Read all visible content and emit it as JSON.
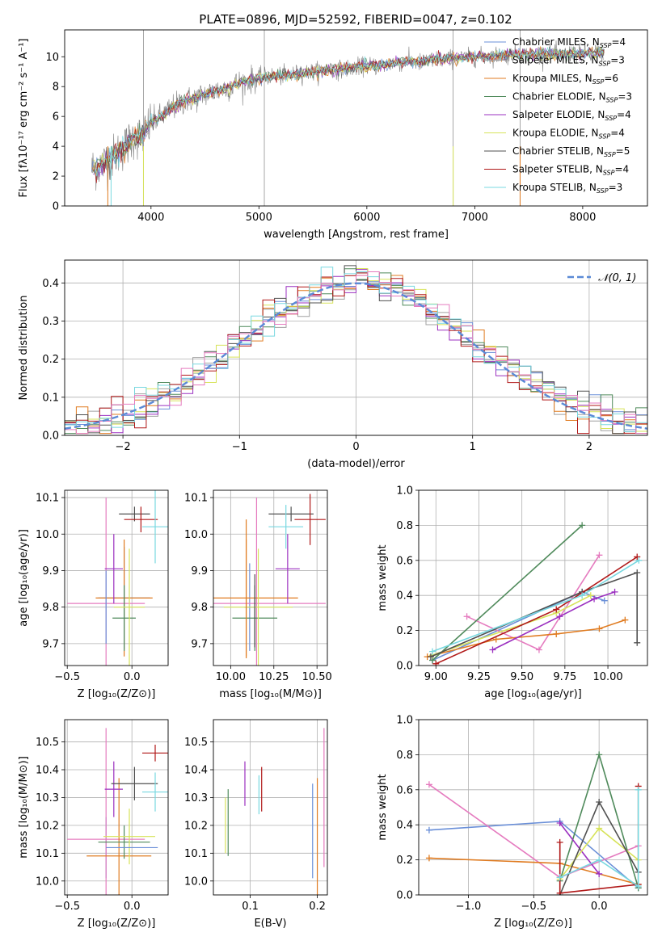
{
  "figure": {
    "title": "PLATE=0896, MJD=52592, FIBERID=0047, z=0.102"
  },
  "palette": {
    "Chabrier MILES": "#6a8fd8",
    "Salpeter MILES": "#a0a0a0",
    "Kroupa MILES": "#e07b20",
    "Chabrier ELODIE": "#4f8a5b",
    "Salpeter ELODIE": "#9b30c0",
    "Kroupa ELODIE": "#d7e35a",
    "Chabrier STELIB": "#505050",
    "Salpeter STELIB": "#b01818",
    "Kroupa STELIB": "#78d8e0",
    "Pink": "#e57bbf",
    "Data": "#7f7f7f",
    "Normal": "#5b8ad6"
  },
  "chart_data": [
    {
      "id": "spectrum",
      "type": "line",
      "xlabel": "wavelength [Angstrom, rest frame]",
      "ylabel": "Flux [fλ10⁻¹⁷ erg cm⁻² s⁻¹ A⁻¹]",
      "xlim": [
        3200,
        8600
      ],
      "ylim": [
        0,
        11.8
      ],
      "xticks": [
        4000,
        5000,
        6000,
        7000,
        8000
      ],
      "yticks": [
        0,
        2,
        4,
        6,
        8,
        10
      ],
      "grid": false,
      "legend_position": "upper-right",
      "legend": [
        {
          "name": "Chabrier MILES",
          "label": "Chabrier MILES, N",
          "sub": "SSP",
          "tail": "=4"
        },
        {
          "name": "Salpeter MILES",
          "label": "Salpeter MILES, N",
          "sub": "SSP",
          "tail": "=3"
        },
        {
          "name": "Kroupa MILES",
          "label": "Kroupa MILES, N",
          "sub": "SSP",
          "tail": "=6"
        },
        {
          "name": "Chabrier ELODIE",
          "label": "Chabrier ELODIE, N",
          "sub": "SSP",
          "tail": "=3"
        },
        {
          "name": "Salpeter ELODIE",
          "label": "Salpeter ELODIE, N",
          "sub": "SSP",
          "tail": "=4"
        },
        {
          "name": "Kroupa ELODIE",
          "label": "Kroupa ELODIE, N",
          "sub": "SSP",
          "tail": "=4"
        },
        {
          "name": "Chabrier STELIB",
          "label": "Chabrier STELIB, N",
          "sub": "SSP",
          "tail": "=5"
        },
        {
          "name": "Salpeter STELIB",
          "label": "Salpeter STELIB, N",
          "sub": "SSP",
          "tail": "=4"
        },
        {
          "name": "Kroupa STELIB",
          "label": "Kroupa STELIB, N",
          "sub": "SSP",
          "tail": "=3"
        }
      ],
      "data_x": [
        3450,
        3500,
        3550,
        3600,
        3650,
        3700,
        3750,
        3800,
        3850,
        3900,
        3950,
        4000,
        4100,
        4200,
        4300,
        4400,
        4500,
        4600,
        4700,
        4800,
        4900,
        5000,
        5100,
        5200,
        5300,
        5400,
        5500,
        5600,
        5700,
        5800,
        5900,
        6000,
        6100,
        6200,
        6300,
        6400,
        6500,
        6600,
        6700,
        6800,
        6900,
        7000,
        7100,
        7200,
        7300,
        7400,
        7500,
        7600,
        7700,
        7800,
        7900,
        8000,
        8100,
        8200
      ],
      "data_y": [
        2.5,
        2.6,
        2.8,
        3.0,
        3.3,
        3.6,
        3.9,
        4.3,
        4.7,
        4.6,
        5.0,
        5.6,
        6.0,
        6.6,
        7.0,
        7.2,
        7.5,
        7.7,
        7.9,
        8.2,
        8.4,
        8.6,
        8.7,
        8.7,
        8.8,
        8.9,
        9.0,
        9.1,
        9.1,
        9.2,
        9.3,
        9.4,
        9.4,
        9.5,
        9.6,
        9.7,
        9.6,
        9.8,
        9.8,
        9.9,
        9.9,
        10.0,
        10.0,
        10.1,
        10.1,
        10.2,
        10.1,
        10.2,
        10.2,
        10.1,
        10.2,
        10.2,
        10.3,
        10.2
      ],
      "spikes_x": [
        5050,
        6800,
        7420,
        3930
      ]
    },
    {
      "id": "residuals",
      "type": "area",
      "xlabel": "(data-model)/error",
      "ylabel": "Normed distribution",
      "xlim": [
        -2.5,
        2.5
      ],
      "ylim": [
        0,
        0.46
      ],
      "xticks": [
        -2,
        -1,
        0,
        1,
        2
      ],
      "yticks": [
        0.0,
        0.1,
        0.2,
        0.3,
        0.4
      ],
      "grid": true,
      "legend_position": "upper-right",
      "legend_label": "𝒩(0, 1)",
      "bin_width": 0.1,
      "description": "step histograms for each of 9 fits plus normal pdf"
    },
    {
      "id": "age-vs-Z",
      "type": "scatter",
      "xlabel": "Z [log₁₀(Z/Z⊙)]",
      "ylabel": "age  [log₁₀(age/yr)]",
      "xlim": [
        -0.52,
        0.28
      ],
      "ylim": [
        9.64,
        10.12
      ],
      "xticks": [
        -0.5,
        0.0
      ],
      "yticks": [
        9.7,
        9.8,
        9.9,
        10.0,
        10.1
      ],
      "grid": true,
      "points": [
        {
          "c": "Chabrier MILES",
          "x": -0.06,
          "y": 9.825,
          "xe": 0.2,
          "ye": 0.14
        },
        {
          "c": "Pink",
          "x": -0.2,
          "y": 9.81,
          "xe": 0.3,
          "ye": 0.29
        },
        {
          "c": "Kroupa MILES",
          "x": -0.06,
          "y": 9.825,
          "xe": 0.22,
          "ye": 0.16
        },
        {
          "c": "Chabrier ELODIE",
          "x": -0.06,
          "y": 9.77,
          "xe": 0.09,
          "ye": 0.09
        },
        {
          "c": "Salpeter ELODIE",
          "x": -0.14,
          "y": 9.905,
          "xe": 0.07,
          "ye": 0.095
        },
        {
          "c": "Kroupa ELODIE",
          "x": -0.02,
          "y": 9.8,
          "xe": 0.12,
          "ye": 0.16
        },
        {
          "c": "Chabrier STELIB",
          "x": 0.02,
          "y": 10.055,
          "xe": 0.12,
          "ye": 0.02
        },
        {
          "c": "Salpeter STELIB",
          "x": 0.07,
          "y": 10.04,
          "xe": 0.13,
          "ye": 0.035
        },
        {
          "c": "Kroupa STELIB",
          "x": 0.18,
          "y": 10.02,
          "xe": 0.1,
          "ye": 0.1
        },
        {
          "c": "Chabrier MILES",
          "x": -0.2,
          "y": 9.8,
          "xe": 0.0,
          "ye": 0.1
        }
      ]
    },
    {
      "id": "age-vs-mass",
      "type": "scatter",
      "xlabel": "mass [log₁₀(M/M⊙)]",
      "ylabel": "",
      "xlim": [
        9.9,
        10.56
      ],
      "ylim": [
        9.64,
        10.12
      ],
      "xticks": [
        10.0,
        10.25,
        10.5
      ],
      "yticks": [
        9.7,
        9.8,
        9.9,
        10.0,
        10.1
      ],
      "grid": true,
      "points": [
        {
          "c": "Chabrier MILES",
          "x": 10.11,
          "y": 9.8,
          "xe": 0.03,
          "ye": 0.12
        },
        {
          "c": "Pink",
          "x": 10.15,
          "y": 9.81,
          "xe": 0.4,
          "ye": 0.29
        },
        {
          "c": "Kroupa MILES",
          "x": 10.09,
          "y": 9.825,
          "xe": 0.3,
          "ye": 0.16
        },
        {
          "c": "Chabrier ELODIE",
          "x": 10.14,
          "y": 9.77,
          "xe": 0.13,
          "ye": 0.09
        },
        {
          "c": "Salpeter ELODIE",
          "x": 10.33,
          "y": 9.905,
          "xe": 0.07,
          "ye": 0.095
        },
        {
          "c": "Kroupa ELODIE",
          "x": 10.16,
          "y": 9.8,
          "xe": 0.2,
          "ye": 0.16
        },
        {
          "c": "Chabrier STELIB",
          "x": 10.35,
          "y": 10.055,
          "xe": 0.13,
          "ye": 0.02
        },
        {
          "c": "Salpeter STELIB",
          "x": 10.46,
          "y": 10.04,
          "xe": 0.09,
          "ye": 0.07
        },
        {
          "c": "Kroupa STELIB",
          "x": 10.32,
          "y": 10.02,
          "xe": 0.1,
          "ye": 0.06
        },
        {
          "c": "Kroupa MILES",
          "x": 10.09,
          "y": 9.85,
          "xe": 0.0,
          "ye": 0.19
        },
        {
          "c": "Chabrier STELIB",
          "x": 10.14,
          "y": 9.79,
          "xe": 0.0,
          "ye": 0.1
        }
      ]
    },
    {
      "id": "mass-weight-vs-age",
      "type": "line",
      "xlabel": "age  [log₁₀(age/yr)]",
      "ylabel": "mass weight",
      "xlim": [
        8.9,
        10.23
      ],
      "ylim": [
        0.0,
        1.0
      ],
      "xticks": [
        9.0,
        9.25,
        9.5,
        9.75,
        10.0
      ],
      "yticks": [
        0.0,
        0.2,
        0.4,
        0.6,
        0.8,
        1.0
      ],
      "grid": true,
      "series": [
        {
          "c": "Chabrier MILES",
          "x": [
            8.98,
            9.85,
            9.98
          ],
          "y": [
            0.03,
            0.42,
            0.37
          ]
        },
        {
          "c": "Pink",
          "x": [
            9.18,
            9.6,
            9.95
          ],
          "y": [
            0.28,
            0.09,
            0.63
          ]
        },
        {
          "c": "Kroupa MILES",
          "x": [
            8.95,
            9.35,
            9.7,
            9.95,
            10.1
          ],
          "y": [
            0.05,
            0.15,
            0.18,
            0.21,
            0.26
          ]
        },
        {
          "c": "Chabrier ELODIE",
          "x": [
            8.98,
            9.85
          ],
          "y": [
            0.03,
            0.8
          ]
        },
        {
          "c": "Salpeter ELODIE",
          "x": [
            9.33,
            9.72,
            9.92,
            10.04
          ],
          "y": [
            0.09,
            0.28,
            0.38,
            0.42
          ]
        },
        {
          "c": "Kroupa ELODIE",
          "x": [
            8.98,
            9.7,
            9.9
          ],
          "y": [
            0.06,
            0.3,
            0.4
          ]
        },
        {
          "c": "Chabrier STELIB",
          "x": [
            8.97,
            9.85,
            10.17,
            10.17
          ],
          "y": [
            0.05,
            0.42,
            0.53,
            0.13
          ]
        },
        {
          "c": "Salpeter STELIB",
          "x": [
            9.0,
            9.7,
            10.17
          ],
          "y": [
            0.01,
            0.32,
            0.62
          ]
        },
        {
          "c": "Kroupa STELIB",
          "x": [
            8.98,
            9.85,
            10.18
          ],
          "y": [
            0.08,
            0.4,
            0.6
          ]
        }
      ]
    },
    {
      "id": "mass-vs-Z",
      "type": "scatter",
      "xlabel": "Z [log₁₀(Z/Z⊙)]",
      "ylabel": "mass [log₁₀(M/M⊙)]",
      "xlim": [
        -0.52,
        0.28
      ],
      "ylim": [
        9.95,
        10.58
      ],
      "xticks": [
        -0.5,
        0.0
      ],
      "yticks": [
        10.0,
        10.1,
        10.2,
        10.3,
        10.4,
        10.5
      ],
      "grid": true,
      "points": [
        {
          "c": "Chabrier MILES",
          "x": -0.2,
          "y": 10.12,
          "xe": 0.0,
          "ye": 0.11
        },
        {
          "c": "Pink",
          "x": -0.2,
          "y": 10.15,
          "xe": 0.3,
          "ye": 0.4
        },
        {
          "c": "Kroupa MILES",
          "x": -0.1,
          "y": 10.09,
          "xe": 0.25,
          "ye": 0.28
        },
        {
          "c": "Chabrier ELODIE",
          "x": -0.06,
          "y": 10.14,
          "xe": 0.2,
          "ye": 0.06
        },
        {
          "c": "Salpeter ELODIE",
          "x": -0.14,
          "y": 10.33,
          "xe": 0.07,
          "ye": 0.1
        },
        {
          "c": "Kroupa ELODIE",
          "x": -0.02,
          "y": 10.16,
          "xe": 0.2,
          "ye": 0.1
        },
        {
          "c": "Chabrier STELIB",
          "x": 0.02,
          "y": 10.35,
          "xe": 0.18,
          "ye": 0.06
        },
        {
          "c": "Salpeter STELIB",
          "x": 0.18,
          "y": 10.46,
          "xe": 0.1,
          "ye": 0.03
        },
        {
          "c": "Kroupa STELIB",
          "x": 0.18,
          "y": 10.32,
          "xe": 0.1,
          "ye": 0.07
        },
        {
          "c": "Chabrier MILES",
          "x": 0.0,
          "y": 10.12,
          "xe": 0.2,
          "ye": 0.0
        }
      ]
    },
    {
      "id": "mass-vs-ebv",
      "type": "scatter",
      "xlabel": "E(B-V)",
      "ylabel": "",
      "xlim": [
        0.045,
        0.215
      ],
      "ylim": [
        9.95,
        10.58
      ],
      "xticks": [
        0.1,
        0.2
      ],
      "yticks": [
        10.0,
        10.1,
        10.2,
        10.3,
        10.4,
        10.5
      ],
      "grid": true,
      "points": [
        {
          "c": "Kroupa ELODIE",
          "x": 0.063,
          "y": 10.2,
          "xe": 0.0,
          "ye": 0.1
        },
        {
          "c": "Chabrier ELODIE",
          "x": 0.067,
          "y": 10.21,
          "xe": 0.0,
          "ye": 0.12
        },
        {
          "c": "Salpeter ELODIE",
          "x": 0.092,
          "y": 10.35,
          "xe": 0.0,
          "ye": 0.08
        },
        {
          "c": "Kroupa STELIB",
          "x": 0.113,
          "y": 10.31,
          "xe": 0.0,
          "ye": 0.07
        },
        {
          "c": "Salpeter STELIB",
          "x": 0.117,
          "y": 10.33,
          "xe": 0.0,
          "ye": 0.08
        },
        {
          "c": "Chabrier MILES",
          "x": 0.193,
          "y": 10.18,
          "xe": 0.0,
          "ye": 0.17
        },
        {
          "c": "Kroupa MILES",
          "x": 0.2,
          "y": 10.15,
          "xe": 0.0,
          "ye": 0.22
        },
        {
          "c": "Pink",
          "x": 0.21,
          "y": 10.3,
          "xe": 0.0,
          "ye": 0.25
        }
      ]
    },
    {
      "id": "mass-weight-vs-Z",
      "type": "line",
      "xlabel": "Z [log₁₀(Z/Z⊙)]",
      "ylabel": "mass weight",
      "xlim": [
        -1.38,
        0.37
      ],
      "ylim": [
        0.0,
        1.0
      ],
      "xticks": [
        -1.0,
        -0.5,
        0.0
      ],
      "yticks": [
        0.0,
        0.2,
        0.4,
        0.6,
        0.8,
        1.0
      ],
      "grid": true,
      "series": [
        {
          "c": "Chabrier MILES",
          "x": [
            -1.3,
            -0.3,
            0.3
          ],
          "y": [
            0.37,
            0.42,
            0.04
          ]
        },
        {
          "c": "Pink",
          "x": [
            -1.3,
            -0.3,
            0.3
          ],
          "y": [
            0.63,
            0.1,
            0.28
          ]
        },
        {
          "c": "Kroupa MILES",
          "x": [
            -1.3,
            -0.3,
            0.3
          ],
          "y": [
            0.21,
            0.18,
            0.06
          ]
        },
        {
          "c": "Chabrier ELODIE",
          "x": [
            -0.3,
            0.0,
            0.3
          ],
          "y": [
            0.08,
            0.8,
            0.04
          ]
        },
        {
          "c": "Salpeter ELODIE",
          "x": [
            -0.3,
            0.0
          ],
          "y": [
            0.41,
            0.12
          ]
        },
        {
          "c": "Kroupa ELODIE",
          "x": [
            -0.3,
            0.0,
            0.3
          ],
          "y": [
            0.09,
            0.38,
            0.2
          ]
        },
        {
          "c": "Chabrier STELIB",
          "x": [
            -0.3,
            0.0,
            0.3
          ],
          "y": [
            0.0,
            0.53,
            0.13
          ]
        },
        {
          "c": "Salpeter STELIB",
          "x": [
            -0.3,
            -0.3,
            0.3,
            0.3
          ],
          "y": [
            0.3,
            0.01,
            0.06,
            0.62
          ]
        },
        {
          "c": "Kroupa STELIB",
          "x": [
            -0.3,
            0.0,
            0.3,
            0.3
          ],
          "y": [
            0.1,
            0.2,
            0.05,
            0.6
          ]
        }
      ]
    }
  ]
}
